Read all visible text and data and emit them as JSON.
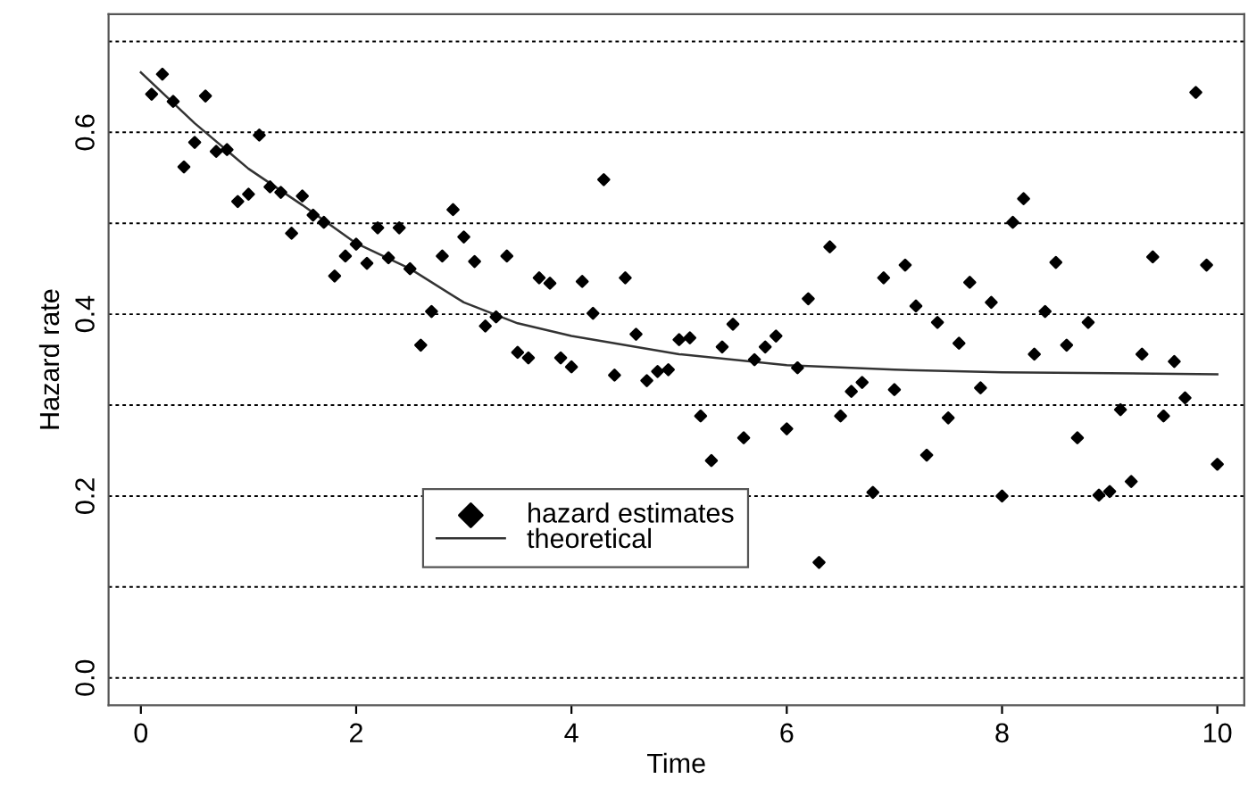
{
  "chart_data": {
    "type": "scatter",
    "xlabel": "Time",
    "ylabel": "Hazard rate",
    "xlim": [
      -0.3,
      10.25
    ],
    "ylim": [
      -0.03,
      0.73
    ],
    "xticks": [
      0,
      2,
      4,
      6,
      8,
      10
    ],
    "yticks": [
      {
        "value": 0,
        "label": "0.0"
      },
      {
        "value": 0.1,
        "label": null
      },
      0.2,
      {
        "value": 0.3,
        "label": null
      },
      0.4,
      {
        "value": 0.5,
        "label": null
      },
      0.6,
      {
        "value": 0.7,
        "label": null
      }
    ],
    "grid": "y",
    "legend": "bottom",
    "series": [
      {
        "name": "hazard estimates",
        "marker": "diamond",
        "color": "#000000",
        "x": [
          0.1,
          0.2,
          0.3,
          0.4,
          0.5,
          0.6,
          0.7,
          0.8,
          0.9,
          1.0,
          1.1,
          1.2,
          1.3,
          1.4,
          1.5,
          1.6,
          1.7,
          1.8,
          1.9,
          2.0,
          2.1,
          2.2,
          2.3,
          2.4,
          2.5,
          2.6,
          2.7,
          2.8,
          2.9,
          3.0,
          3.1,
          3.2,
          3.3,
          3.4,
          3.5,
          3.6,
          3.7,
          3.8,
          3.9,
          4.0,
          4.1,
          4.2,
          4.3,
          4.4,
          4.5,
          4.6,
          4.7,
          4.8,
          4.9,
          5.0,
          5.1,
          5.2,
          5.3,
          5.4,
          5.5,
          5.6,
          5.7,
          5.8,
          5.9,
          6.0,
          6.1,
          6.2,
          6.3,
          6.4,
          6.5,
          6.6,
          6.7,
          6.8,
          6.9,
          7.0,
          7.1,
          7.2,
          7.3,
          7.4,
          7.5,
          7.6,
          7.7,
          7.8,
          7.9,
          8.0,
          8.1,
          8.2,
          8.3,
          8.4,
          8.5,
          8.6,
          8.7,
          8.8,
          8.9,
          9.0,
          9.1,
          9.2,
          9.3,
          9.4,
          9.5,
          9.6,
          9.7,
          9.8,
          9.9,
          10.0
        ],
        "values": [
          0.642,
          0.664,
          0.634,
          0.562,
          0.589,
          0.64,
          0.579,
          0.581,
          0.524,
          0.532,
          0.597,
          0.54,
          0.534,
          0.489,
          0.53,
          0.509,
          0.501,
          0.442,
          0.464,
          0.477,
          0.456,
          0.495,
          0.462,
          0.495,
          0.45,
          0.366,
          0.403,
          0.464,
          0.515,
          0.485,
          0.458,
          0.387,
          0.397,
          0.464,
          0.358,
          0.352,
          0.44,
          0.434,
          0.352,
          0.342,
          0.436,
          0.401,
          0.548,
          0.333,
          0.44,
          0.378,
          0.327,
          0.337,
          0.339,
          0.372,
          0.374,
          0.288,
          0.239,
          0.364,
          0.389,
          0.264,
          0.35,
          0.364,
          0.376,
          0.274,
          0.341,
          0.417,
          0.127,
          0.474,
          0.288,
          0.315,
          0.325,
          0.204,
          0.44,
          0.317,
          0.454,
          0.409,
          0.245,
          0.391,
          0.286,
          0.368,
          0.435,
          0.319,
          0.413,
          0.2,
          0.501,
          0.527,
          0.356,
          0.403,
          0.457,
          0.366,
          0.264,
          0.391,
          0.201,
          0.205,
          0.295,
          0.216,
          0.356,
          0.463,
          0.288,
          0.348,
          0.308,
          0.644,
          0.454,
          0.235
        ]
      },
      {
        "name": "theoretical",
        "type": "line",
        "marker": "none",
        "line_style": "solid",
        "color": "#333333",
        "x": [
          0,
          0.5,
          1,
          1.5,
          2,
          2.5,
          3,
          3.5,
          4,
          5,
          6,
          7,
          8,
          9,
          10
        ],
        "values": [
          0.666,
          0.61,
          0.56,
          0.52,
          0.478,
          0.45,
          0.413,
          0.39,
          0.376,
          0.356,
          0.344,
          0.339,
          0.336,
          0.335,
          0.334
        ]
      }
    ]
  }
}
